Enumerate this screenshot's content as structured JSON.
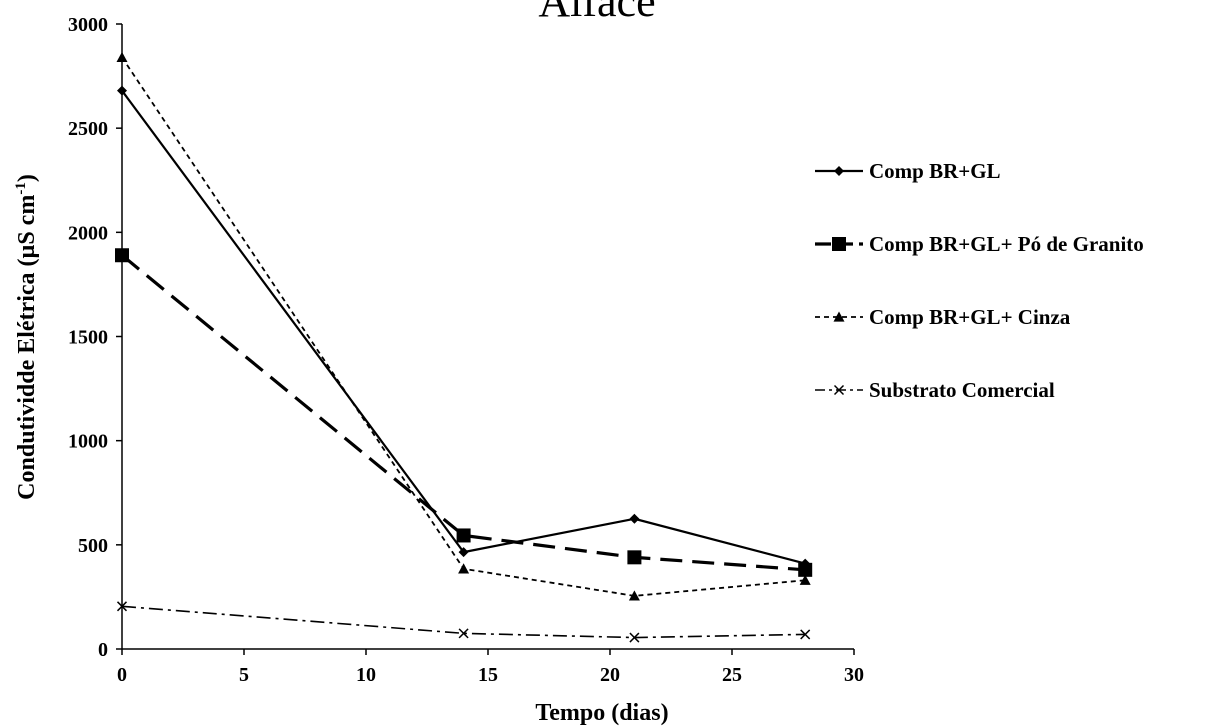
{
  "chart_data": {
    "type": "line",
    "title": "Alface",
    "xlabel": "Tempo (dias)",
    "ylabel": "Condutividde Elétrica (µS cm",
    "ylabel_superscript": "-1",
    "ylabel_suffix": ")",
    "xlim": [
      0,
      30
    ],
    "ylim": [
      0,
      3000
    ],
    "x_ticks": [
      0,
      5,
      10,
      15,
      20,
      25,
      30
    ],
    "y_ticks": [
      0,
      500,
      1000,
      1500,
      2000,
      2500,
      3000
    ],
    "grid": false,
    "legend_position": "right",
    "x": [
      0,
      14,
      21,
      28
    ],
    "series": [
      {
        "name": "Comp BR+GL",
        "values": [
          2680,
          465,
          625,
          410
        ],
        "marker": "diamond",
        "dash": "solid",
        "color": "#000000"
      },
      {
        "name": "Comp BR+GL+ Pó de Granito",
        "values": [
          1890,
          545,
          440,
          380
        ],
        "marker": "square",
        "dash": "long-dash",
        "color": "#000000"
      },
      {
        "name": "Comp BR+GL+ Cinza",
        "values": [
          2840,
          385,
          255,
          330
        ],
        "marker": "triangle",
        "dash": "short-dash",
        "color": "#000000"
      },
      {
        "name": "Substrato Comercial",
        "values": [
          205,
          75,
          55,
          70
        ],
        "marker": "x",
        "dash": "dash-dot",
        "color": "#000000"
      }
    ]
  }
}
